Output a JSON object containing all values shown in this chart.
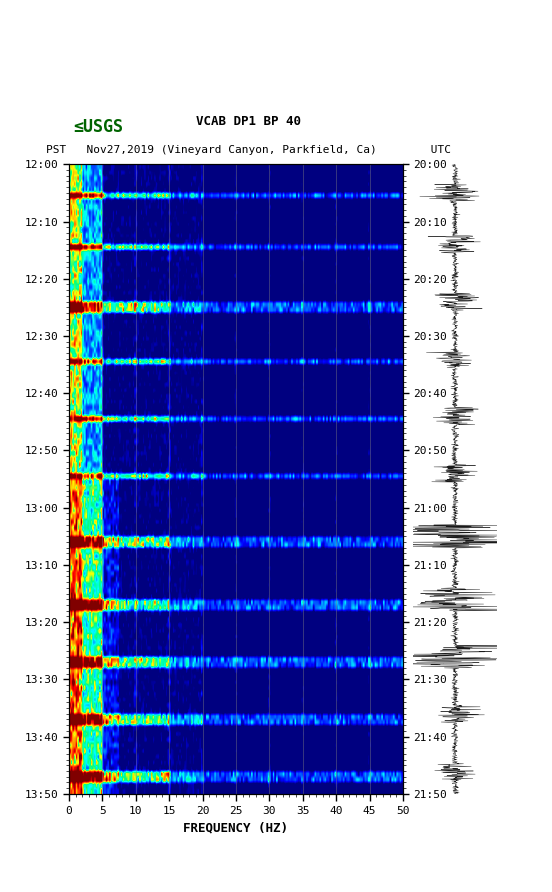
{
  "title_line1": "VCAB DP1 BP 40",
  "title_line2": "PST   Nov27,2019 (Vineyard Canyon, Parkfield, Ca)        UTC",
  "xlabel": "FREQUENCY (HZ)",
  "left_time_labels": [
    "12:00",
    "12:10",
    "12:20",
    "12:30",
    "12:40",
    "12:50",
    "13:00",
    "13:10",
    "13:20",
    "13:30",
    "13:40",
    "13:50"
  ],
  "right_time_labels": [
    "20:00",
    "20:10",
    "20:20",
    "20:30",
    "20:40",
    "20:50",
    "21:00",
    "21:10",
    "21:20",
    "21:30",
    "21:40",
    "21:50"
  ],
  "freq_min": 0,
  "freq_max": 50,
  "freq_ticks": [
    0,
    5,
    10,
    15,
    20,
    25,
    30,
    35,
    40,
    45,
    50
  ],
  "time_steps": 110,
  "background_color": "#ffffff",
  "spectrogram_bg": "#00008B",
  "grid_color": "#808080",
  "usgs_color": "#006400"
}
